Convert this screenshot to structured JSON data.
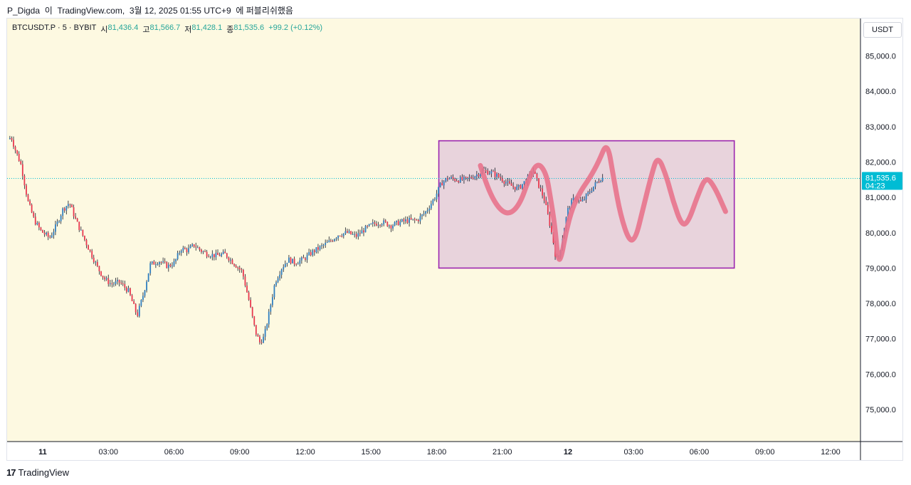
{
  "header": {
    "author": "P_Digda",
    "connector": "이",
    "site": "TradingView.com,",
    "date": "3월 12, 2025 01:55 UTC+9",
    "suffix": "에 퍼블리쉬했음"
  },
  "legend": {
    "symbol": "BTCUSDT.P · 5 · BYBIT",
    "open_label": "시",
    "open_value": "81,436.4",
    "high_label": "고",
    "high_value": "81,566.7",
    "low_label": "저",
    "low_value": "81,428.1",
    "close_label": "종",
    "close_value": "81,535.6",
    "change": "+99.2 (+0.12%)"
  },
  "currency_button": {
    "label": "USDT"
  },
  "price_tag": {
    "price": "81,535.6",
    "countdown": "04:23"
  },
  "footer": {
    "logo_text": "TradingView"
  },
  "colors": {
    "background": "#fdf9e1",
    "up": "#2f7fc1",
    "down": "#e8384f",
    "wick": "#131722",
    "box_fill": "#e8d3dc",
    "box_border": "#9c27b0",
    "scribble": "#e8738c",
    "price_tag": "#00bcd4"
  },
  "chart_data": {
    "type": "candlestick",
    "symbol": "BTCUSDT.P",
    "interval": "5",
    "exchange": "BYBIT",
    "y_axis": {
      "ylim": [
        74000,
        86000
      ],
      "ticks": [
        "85,000.0",
        "84,000.0",
        "83,000.0",
        "82,000.0",
        "81,000.0",
        "80,000.0",
        "79,000.0",
        "78,000.0",
        "77,000.0",
        "76,000.0",
        "75,000.0"
      ],
      "tick_values": [
        85000,
        84000,
        83000,
        82000,
        81000,
        80000,
        79000,
        78000,
        77000,
        76000,
        75000
      ]
    },
    "x_axis": {
      "tick_labels": [
        "11",
        "03:00",
        "06:00",
        "09:00",
        "12:00",
        "15:00",
        "18:00",
        "21:00",
        "12",
        "03:00",
        "06:00",
        "09:00",
        "12:00"
      ],
      "tick_hours": [
        0,
        3,
        6,
        9,
        12,
        15,
        18,
        21,
        24,
        27,
        30,
        33,
        36
      ],
      "bold_ticks": [
        "11",
        "12"
      ],
      "xlim_hours": [
        -1.66,
        37.5
      ]
    },
    "current_price": 81535.6,
    "price_path": [
      [
        -1.5,
        82650
      ],
      [
        -1.35,
        82700
      ],
      [
        -1.2,
        82400
      ],
      [
        -0.9,
        81900
      ],
      [
        -0.6,
        80900
      ],
      [
        -0.3,
        80350
      ],
      [
        0.0,
        80050
      ],
      [
        0.4,
        79850
      ],
      [
        0.7,
        80200
      ],
      [
        1.0,
        80650
      ],
      [
        1.3,
        80850
      ],
      [
        1.6,
        80350
      ],
      [
        2.0,
        79800
      ],
      [
        2.3,
        79400
      ],
      [
        2.6,
        79000
      ],
      [
        2.9,
        78700
      ],
      [
        3.2,
        78550
      ],
      [
        3.6,
        78600
      ],
      [
        4.0,
        78350
      ],
      [
        4.2,
        78000
      ],
      [
        4.4,
        77650
      ],
      [
        4.7,
        78300
      ],
      [
        5.0,
        79100
      ],
      [
        5.4,
        79200
      ],
      [
        5.8,
        79050
      ],
      [
        6.1,
        79150
      ],
      [
        6.4,
        79550
      ],
      [
        6.7,
        79500
      ],
      [
        7.0,
        79650
      ],
      [
        7.3,
        79500
      ],
      [
        7.6,
        79400
      ],
      [
        8.0,
        79350
      ],
      [
        8.4,
        79400
      ],
      [
        8.8,
        79150
      ],
      [
        9.2,
        78900
      ],
      [
        9.5,
        78100
      ],
      [
        9.8,
        77200
      ],
      [
        10.0,
        76900
      ],
      [
        10.2,
        77050
      ],
      [
        10.4,
        77650
      ],
      [
        10.7,
        78600
      ],
      [
        11.0,
        79000
      ],
      [
        11.3,
        79250
      ],
      [
        11.6,
        79150
      ],
      [
        12.0,
        79250
      ],
      [
        12.4,
        79450
      ],
      [
        12.8,
        79600
      ],
      [
        13.2,
        79750
      ],
      [
        13.6,
        79950
      ],
      [
        14.0,
        80000
      ],
      [
        14.4,
        79900
      ],
      [
        14.8,
        80100
      ],
      [
        15.2,
        80250
      ],
      [
        15.6,
        80300
      ],
      [
        16.0,
        80200
      ],
      [
        16.4,
        80300
      ],
      [
        16.8,
        80350
      ],
      [
        17.2,
        80350
      ],
      [
        17.6,
        80600
      ],
      [
        18.0,
        81000
      ],
      [
        18.3,
        81400
      ],
      [
        18.6,
        81550
      ],
      [
        19.0,
        81500
      ],
      [
        19.4,
        81500
      ],
      [
        19.8,
        81600
      ],
      [
        20.2,
        81750
      ],
      [
        20.6,
        81700
      ],
      [
        21.0,
        81550
      ],
      [
        21.4,
        81350
      ],
      [
        21.8,
        81250
      ],
      [
        22.2,
        81500
      ],
      [
        22.5,
        81750
      ],
      [
        22.8,
        81250
      ],
      [
        23.0,
        80950
      ],
      [
        23.2,
        80400
      ],
      [
        23.4,
        79800
      ],
      [
        23.55,
        79200
      ],
      [
        23.7,
        79400
      ],
      [
        23.9,
        80100
      ],
      [
        24.1,
        80700
      ],
      [
        24.4,
        81000
      ],
      [
        24.7,
        80850
      ],
      [
        25.0,
        81100
      ],
      [
        25.3,
        81350
      ],
      [
        25.6,
        81550
      ]
    ],
    "annotations": [
      {
        "type": "rectangle",
        "x_hours": [
          18.1,
          31.6
        ],
        "y_range": [
          79000,
          82600
        ],
        "fill": "#e8d3dc",
        "border": "#9c27b0"
      },
      {
        "type": "freehand",
        "color": "#e8738c",
        "points": [
          [
            20.0,
            81900
          ],
          [
            20.3,
            81300
          ],
          [
            20.8,
            80700
          ],
          [
            21.3,
            80500
          ],
          [
            21.8,
            80800
          ],
          [
            22.2,
            81500
          ],
          [
            22.6,
            82000
          ],
          [
            23.0,
            81700
          ],
          [
            23.2,
            81000
          ],
          [
            23.4,
            80200
          ],
          [
            23.55,
            79200
          ],
          [
            23.7,
            79300
          ],
          [
            23.9,
            80000
          ],
          [
            24.2,
            80700
          ],
          [
            24.6,
            81200
          ],
          [
            25.0,
            81550
          ],
          [
            25.4,
            82000
          ],
          [
            25.8,
            82600
          ],
          [
            26.1,
            81500
          ],
          [
            26.4,
            80500
          ],
          [
            26.8,
            79750
          ],
          [
            27.1,
            79850
          ],
          [
            27.4,
            80600
          ],
          [
            27.8,
            81600
          ],
          [
            28.1,
            82200
          ],
          [
            28.5,
            81600
          ],
          [
            28.8,
            80900
          ],
          [
            29.2,
            80200
          ],
          [
            29.5,
            80300
          ],
          [
            29.9,
            81000
          ],
          [
            30.3,
            81600
          ],
          [
            30.7,
            81300
          ],
          [
            31.2,
            80600
          ]
        ]
      }
    ]
  }
}
